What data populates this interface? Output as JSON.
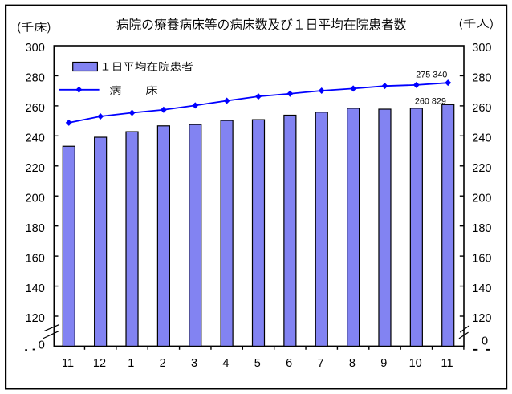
{
  "page": {
    "background": "#ffffff",
    "frame_color": "#000000"
  },
  "chart_data": {
    "type": "bar",
    "title": "病院の療養病床等の病床数及び１日平均在院患者数",
    "left_axis_unit": "（千床）",
    "right_axis_unit": "（千人）",
    "categories": [
      "11",
      "12",
      "1",
      "2",
      "3",
      "4",
      "5",
      "6",
      "7",
      "8",
      "9",
      "10",
      "11"
    ],
    "series": [
      {
        "name": "１日平均在院患者",
        "type": "bar",
        "color": "#8283f2",
        "values": [
          233.1,
          239.1,
          242.8,
          246.7,
          247.6,
          250.3,
          250.8,
          253.8,
          255.8,
          258.4,
          257.8,
          258.4,
          260.829
        ]
      },
      {
        "name": "病床",
        "type": "line",
        "color": "#0000ff",
        "values": [
          248.8,
          253.0,
          255.4,
          257.4,
          260.3,
          263.4,
          266.3,
          268.1,
          270.1,
          271.5,
          273.2,
          273.9,
          275.34
        ]
      }
    ],
    "ylim": [
      0,
      300
    ],
    "yticks_labeled": [
      300,
      280,
      260,
      240,
      220,
      200,
      180,
      160,
      140,
      120
    ],
    "zero_tick_label": "0",
    "axis_break": true,
    "grid": false,
    "legend": {
      "position": "top-left-inside",
      "items": [
        {
          "label": "１日平均在院患者",
          "marker": "bar"
        },
        {
          "label": "病　　床",
          "marker": "line-diamond"
        }
      ]
    },
    "annotations": [
      {
        "text": "275 340",
        "series": "病床",
        "category": "11"
      },
      {
        "text": "260 829",
        "series": "１日平均在院患者",
        "category": "11"
      }
    ]
  }
}
